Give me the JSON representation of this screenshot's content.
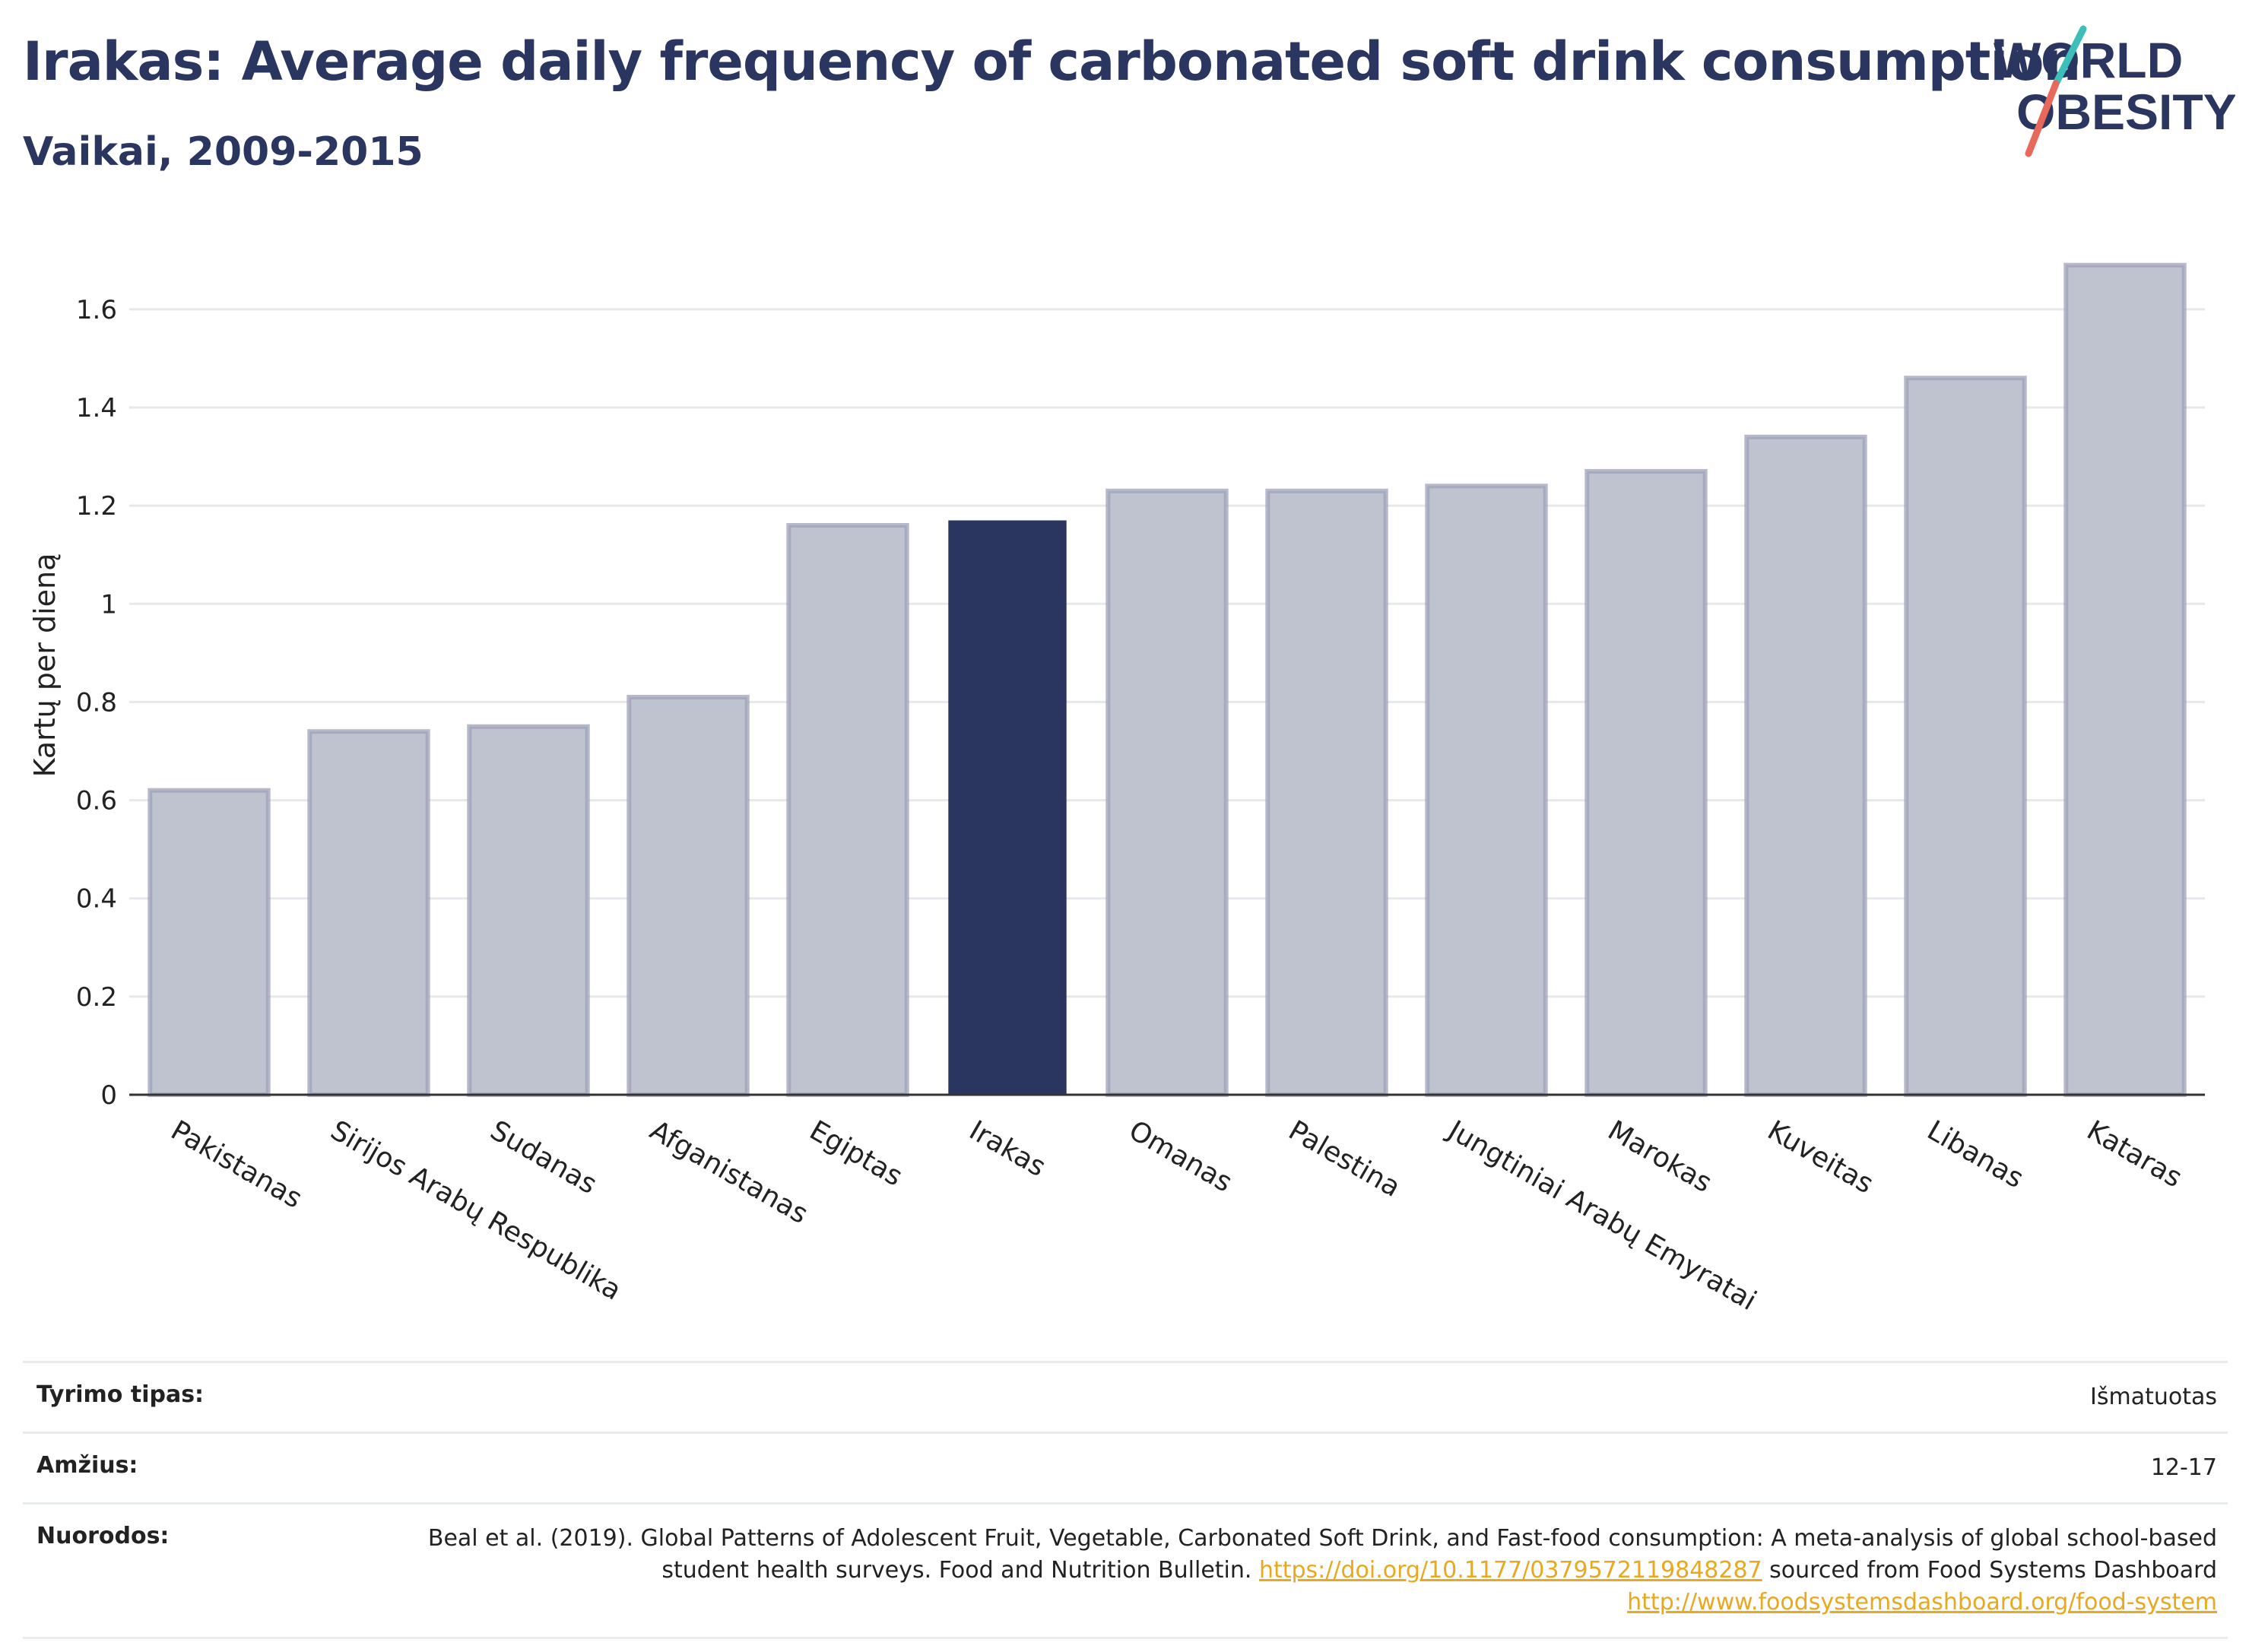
{
  "header": {
    "title": "Irakas: Average daily frequency of carbonated soft drink consumption",
    "subtitle": "Vaikai, 2009-2015",
    "logo_line1": "WORLD",
    "logo_line2": "OBESITY"
  },
  "colors": {
    "title": "#2a3560",
    "highlight_bar": "#2a3560",
    "other_bar_fill": "#bfc2cf",
    "other_bar_stroke": "#9da1b8",
    "logo_teal": "#3bbfb8",
    "logo_coral": "#e8695a",
    "link": "#e8a820"
  },
  "chart_data": {
    "type": "bar",
    "categories": [
      "Pakistanas",
      "Sirijos Arabų Respublika",
      "Sudanas",
      "Afganistanas",
      "Egiptas",
      "Irakas",
      "Omanas",
      "Palestina",
      "Jungtiniai Arabų Emyratai",
      "Marokas",
      "Kuveitas",
      "Libanas",
      "Kataras"
    ],
    "values": [
      0.62,
      0.74,
      0.75,
      0.81,
      1.16,
      1.17,
      1.23,
      1.23,
      1.24,
      1.27,
      1.34,
      1.46,
      1.69
    ],
    "highlight": "Irakas",
    "xlabel": "",
    "ylabel": "Kartų per dieną",
    "ylim": [
      0,
      1.75
    ],
    "yticks": [
      0,
      0.2,
      0.4,
      0.6,
      0.8,
      1,
      1.2,
      1.4,
      1.6
    ],
    "ytick_labels": [
      "0",
      "0.2",
      "0.4",
      "0.6",
      "0.8",
      "1",
      "1.2",
      "1.4",
      "1.6"
    ],
    "grid": true
  },
  "info": {
    "rows": [
      {
        "key": "Tyrimo tipas:",
        "value": "Išmatuotas"
      },
      {
        "key": "Amžius:",
        "value": "12-17"
      }
    ],
    "references_key": "Nuorodos:",
    "references_text1": "Beal et al. (2019). Global Patterns of Adolescent Fruit, Vegetable, Carbonated Soft Drink, and Fast-food consumption: A meta-analysis of global school-based student health surveys. Food and Nutrition Bulletin. ",
    "references_link1": "https://doi.org/10.1177/0379572119848287",
    "references_text2": " sourced from Food Systems Dashboard ",
    "references_link2": "http://www.foodsystemsdashboard.org/food-system"
  }
}
